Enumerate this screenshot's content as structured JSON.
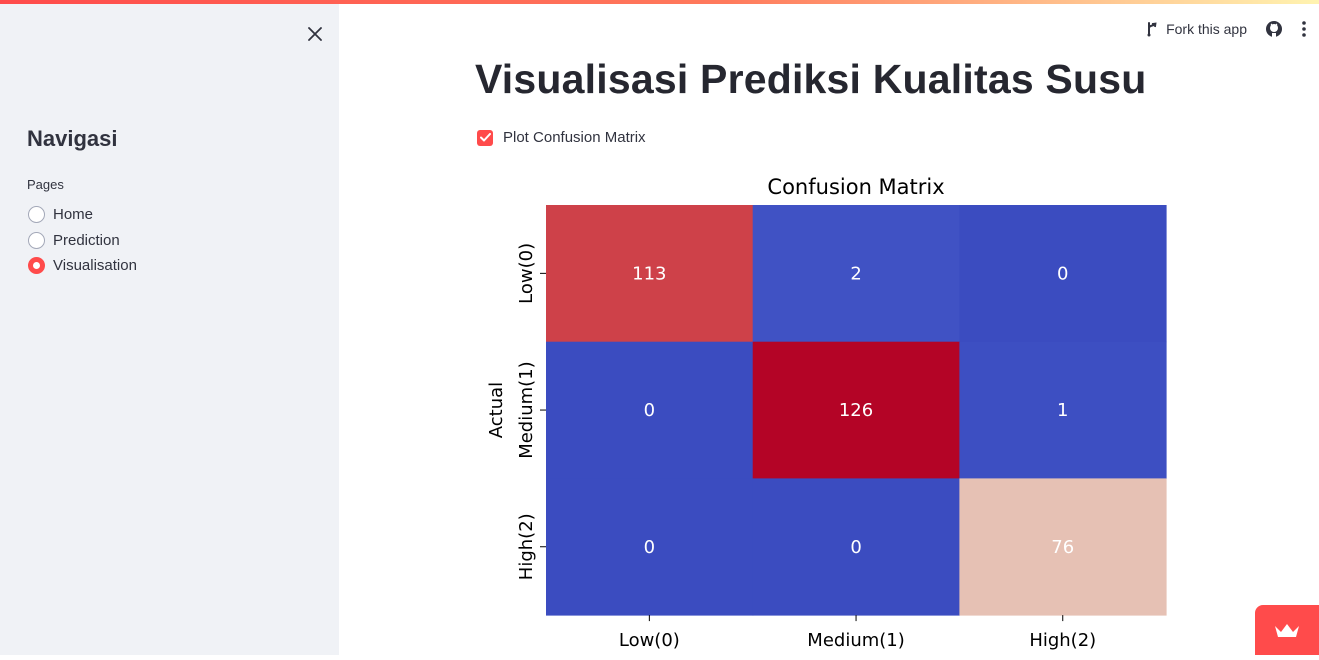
{
  "sidebar": {
    "title": "Navigasi",
    "pages_label": "Pages",
    "pages": [
      {
        "label": "Home",
        "selected": false
      },
      {
        "label": "Prediction",
        "selected": false
      },
      {
        "label": "Visualisation",
        "selected": true
      }
    ]
  },
  "toolbar": {
    "fork_label": "Fork this app"
  },
  "main": {
    "title": "Visualisasi Prediksi Kualitas Susu",
    "checkbox_label": "Plot Confusion Matrix",
    "checkbox_checked": true
  },
  "colors": {
    "accent": "#ff4b4b",
    "sidebar_bg": "#f0f2f6"
  },
  "chart_data": {
    "type": "heatmap",
    "title": "Confusion Matrix",
    "ylabel": "Actual",
    "xlabel": "",
    "x_categories": [
      "Low(0)",
      "Medium(1)",
      "High(2)"
    ],
    "y_categories": [
      "Low(0)",
      "Medium(1)",
      "High(2)"
    ],
    "values": [
      [
        113,
        2,
        0
      ],
      [
        0,
        126,
        1
      ],
      [
        0,
        0,
        76
      ]
    ],
    "colormap": "coolwarm",
    "colorbar": false
  }
}
